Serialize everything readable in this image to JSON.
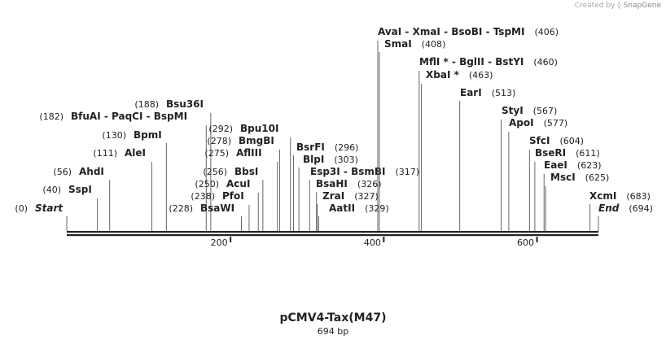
{
  "credit": {
    "prefix": "Created by",
    "brand": "SnapGene"
  },
  "plasmid": {
    "name": "pCMV4-Tax(M47)",
    "length_label": "694 bp"
  },
  "chart_data": {
    "type": "restriction-map",
    "length_bp": 694,
    "ticks": [
      200,
      400,
      600
    ],
    "sites": [
      {
        "names": [
          "Start"
        ],
        "pos": 0,
        "label": "(0)",
        "italic": true
      },
      {
        "names": [
          "SspI"
        ],
        "pos": 40,
        "label": "(40)"
      },
      {
        "names": [
          "AhdI"
        ],
        "pos": 56,
        "label": "(56)"
      },
      {
        "names": [
          "AleI"
        ],
        "pos": 111,
        "label": "(111)"
      },
      {
        "names": [
          "BpmI"
        ],
        "pos": 130,
        "label": "(130)"
      },
      {
        "names": [
          "BfuAI",
          "PaqCI",
          "BspMI"
        ],
        "pos": 182,
        "label": "(182)"
      },
      {
        "names": [
          "Bsu36I"
        ],
        "pos": 188,
        "label": "(188)"
      },
      {
        "names": [
          "BsaWI"
        ],
        "pos": 228,
        "label": "(228)"
      },
      {
        "names": [
          "PfoI"
        ],
        "pos": 238,
        "label": "(238)"
      },
      {
        "names": [
          "AcuI"
        ],
        "pos": 250,
        "label": "(250)"
      },
      {
        "names": [
          "BbsI"
        ],
        "pos": 256,
        "label": "(256)"
      },
      {
        "names": [
          "AflIII"
        ],
        "pos": 275,
        "label": "(275)"
      },
      {
        "names": [
          "BmgBI"
        ],
        "pos": 278,
        "label": "(278)"
      },
      {
        "names": [
          "Bpu10I"
        ],
        "pos": 292,
        "label": "(292)"
      },
      {
        "names": [
          "BsrFI"
        ],
        "pos": 296,
        "label": "(296)"
      },
      {
        "names": [
          "BlpI"
        ],
        "pos": 303,
        "label": "(303)"
      },
      {
        "names": [
          "Esp3I",
          "BsmBI"
        ],
        "pos": 317,
        "label": "(317)"
      },
      {
        "names": [
          "BsaHI"
        ],
        "pos": 326,
        "label": "(326)"
      },
      {
        "names": [
          "ZraI"
        ],
        "pos": 327,
        "label": "(327)"
      },
      {
        "names": [
          "AatII"
        ],
        "pos": 329,
        "label": "(329)"
      },
      {
        "names": [
          "AvaI",
          "XmaI",
          "BsoBI",
          "TspMI"
        ],
        "pos": 406,
        "label": "(406)"
      },
      {
        "names": [
          "SmaI"
        ],
        "pos": 408,
        "label": "(408)"
      },
      {
        "names": [
          "MflI *",
          "BglII",
          "BstYI"
        ],
        "pos": 460,
        "label": "(460)"
      },
      {
        "names": [
          "XbaI *"
        ],
        "pos": 463,
        "label": "(463)"
      },
      {
        "names": [
          "EarI"
        ],
        "pos": 513,
        "label": "(513)"
      },
      {
        "names": [
          "StyI"
        ],
        "pos": 567,
        "label": "(567)"
      },
      {
        "names": [
          "ApoI"
        ],
        "pos": 577,
        "label": "(577)"
      },
      {
        "names": [
          "SfcI"
        ],
        "pos": 604,
        "label": "(604)"
      },
      {
        "names": [
          "BseRI"
        ],
        "pos": 611,
        "label": "(611)"
      },
      {
        "names": [
          "EaeI"
        ],
        "pos": 623,
        "label": "(623)"
      },
      {
        "names": [
          "MscI"
        ],
        "pos": 625,
        "label": "(625)"
      },
      {
        "names": [
          "XcmI"
        ],
        "pos": 683,
        "label": "(683)"
      },
      {
        "names": [
          "End"
        ],
        "pos": 694,
        "label": "(694)",
        "italic": true
      }
    ]
  }
}
